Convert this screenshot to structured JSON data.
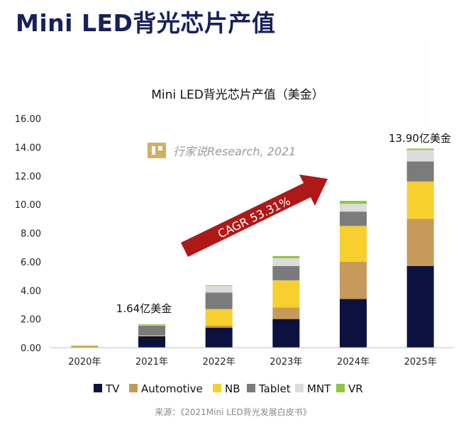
{
  "page": {
    "title": "Mini LED背光芯片产值",
    "source": "来源：《2021Mini LED背光发展白皮书》",
    "watermark": "行家说Research, 2021"
  },
  "colors": {
    "title": "#17215a",
    "arrow": "#b01818",
    "TV": "#0c1240",
    "Automotive": "#c59a5a",
    "NB": "#f7cf2e",
    "Tablet": "#7b7b7b",
    "MNT": "#dcdcdc",
    "VR": "#8dc63f"
  },
  "chart_data": {
    "type": "bar",
    "stacked": true,
    "title": "Mini LED背光芯片产值（美金）",
    "xlabel": "",
    "ylabel": "",
    "ylim": [
      0,
      16
    ],
    "yticks": [
      "0.00",
      "2.00",
      "4.00",
      "6.00",
      "8.00",
      "10.00",
      "12.00",
      "14.00",
      "16.00"
    ],
    "grid": false,
    "legend_position": "bottom",
    "categories": [
      "2020年",
      "2021年",
      "2022年",
      "2023年",
      "2024年",
      "2025年"
    ],
    "series": [
      {
        "name": "TV",
        "values": [
          0.0,
          0.8,
          1.4,
          2.0,
          3.4,
          5.7
        ]
      },
      {
        "name": "Automotive",
        "values": [
          0.1,
          0.0,
          0.15,
          0.8,
          2.6,
          3.3
        ]
      },
      {
        "name": "NB",
        "values": [
          0.02,
          0.05,
          1.15,
          1.9,
          2.5,
          2.6
        ]
      },
      {
        "name": "Tablet",
        "values": [
          0.0,
          0.7,
          1.15,
          1.0,
          1.0,
          1.4
        ]
      },
      {
        "name": "MNT",
        "values": [
          0.02,
          0.04,
          0.45,
          0.55,
          0.55,
          0.8
        ]
      },
      {
        "name": "VR",
        "values": [
          0.01,
          0.05,
          0.05,
          0.15,
          0.2,
          0.1
        ]
      }
    ],
    "annotations": [
      {
        "text": "1.64亿美金",
        "category": "2021年"
      },
      {
        "text": "13.90亿美金",
        "category": "2025年"
      },
      {
        "text": "CAGR 53.31%",
        "kind": "arrow"
      }
    ]
  }
}
